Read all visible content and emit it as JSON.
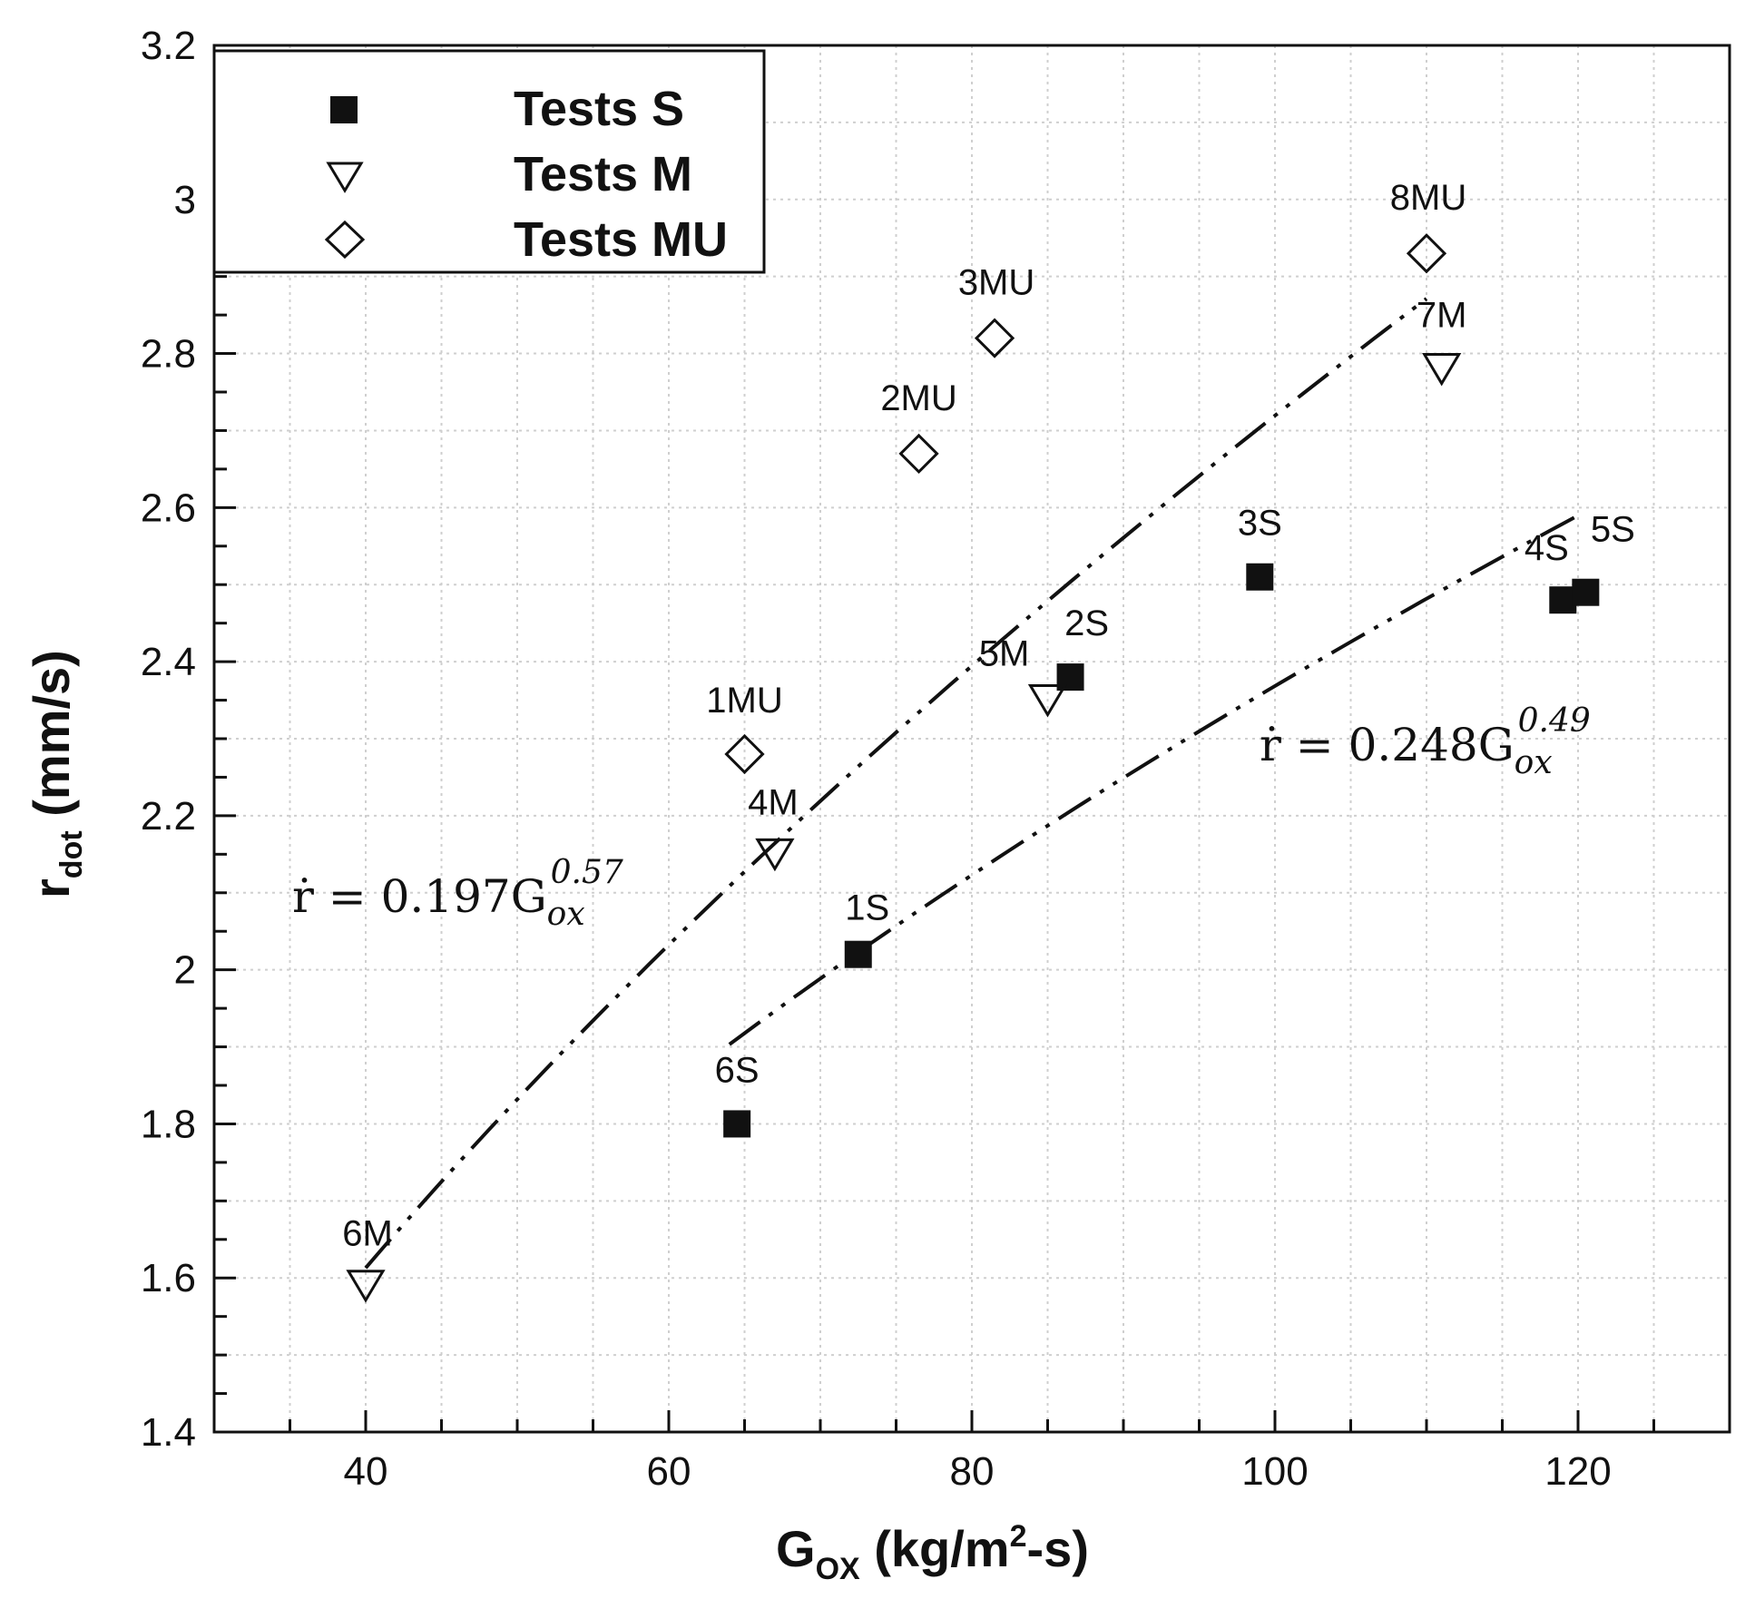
{
  "chart_data": {
    "type": "scatter",
    "title": "",
    "xlabel": "G",
    "xlabel_sub": "OX",
    "xlabel_unit_pre": " (kg/m",
    "xlabel_unit_sup": "2",
    "xlabel_unit_post": "-s)",
    "ylabel": "r",
    "ylabel_sub": "dot",
    "ylabel_unit": " (mm/s)",
    "xlim": [
      30,
      130
    ],
    "ylim": [
      1.4,
      3.2
    ],
    "x_ticks": [
      40,
      60,
      80,
      100,
      120
    ],
    "x_tick_labels": [
      "40",
      "60",
      "80",
      "100",
      "120"
    ],
    "y_ticks": [
      1.4,
      1.6,
      1.8,
      2.0,
      2.2,
      2.4,
      2.6,
      2.8,
      3.0,
      3.2
    ],
    "y_tick_labels": [
      "1.4",
      "1.6",
      "1.8",
      "2",
      "2.2",
      "2.4",
      "2.6",
      "2.8",
      "3",
      "3.2"
    ],
    "grid": true,
    "legend_position": "top-left",
    "series": [
      {
        "name": "Tests S",
        "marker": "filled-square",
        "points": [
          {
            "label": "1S",
            "x": 72.5,
            "y": 2.02
          },
          {
            "label": "2S",
            "x": 86.5,
            "y": 2.38
          },
          {
            "label": "3S",
            "x": 99,
            "y": 2.51
          },
          {
            "label": "4S",
            "x": 119,
            "y": 2.48
          },
          {
            "label": "5S",
            "x": 120.5,
            "y": 2.49
          },
          {
            "label": "6S",
            "x": 64.5,
            "y": 1.8
          }
        ]
      },
      {
        "name": "Tests M",
        "marker": "open-triangle-down",
        "points": [
          {
            "label": "4M",
            "x": 67,
            "y": 2.15
          },
          {
            "label": "5M",
            "x": 85,
            "y": 2.35
          },
          {
            "label": "6M",
            "x": 40,
            "y": 1.59
          },
          {
            "label": "7M",
            "x": 111,
            "y": 2.78
          }
        ]
      },
      {
        "name": "Tests MU",
        "marker": "open-diamond",
        "points": [
          {
            "label": "1MU",
            "x": 65,
            "y": 2.28
          },
          {
            "label": "2MU",
            "x": 76.5,
            "y": 2.67
          },
          {
            "label": "3MU",
            "x": 81.5,
            "y": 2.82
          },
          {
            "label": "8MU",
            "x": 110,
            "y": 2.93
          }
        ]
      }
    ],
    "fit_lines": [
      {
        "name": "fit-M",
        "style": "dash-dot-dot",
        "x_range": [
          40,
          110
        ],
        "coefficient": 0.197,
        "exponent": 0.57,
        "equation_prefix": "ṙ = 0.197G",
        "equation_sub": "ox",
        "equation_sup": "0.57"
      },
      {
        "name": "fit-S",
        "style": "dash-dot-dot",
        "x_range": [
          64,
          120
        ],
        "coefficient": 0.248,
        "exponent": 0.49,
        "equation_prefix": "ṙ = 0.248G",
        "equation_sub": "ox",
        "equation_sup": "0.49"
      }
    ]
  }
}
